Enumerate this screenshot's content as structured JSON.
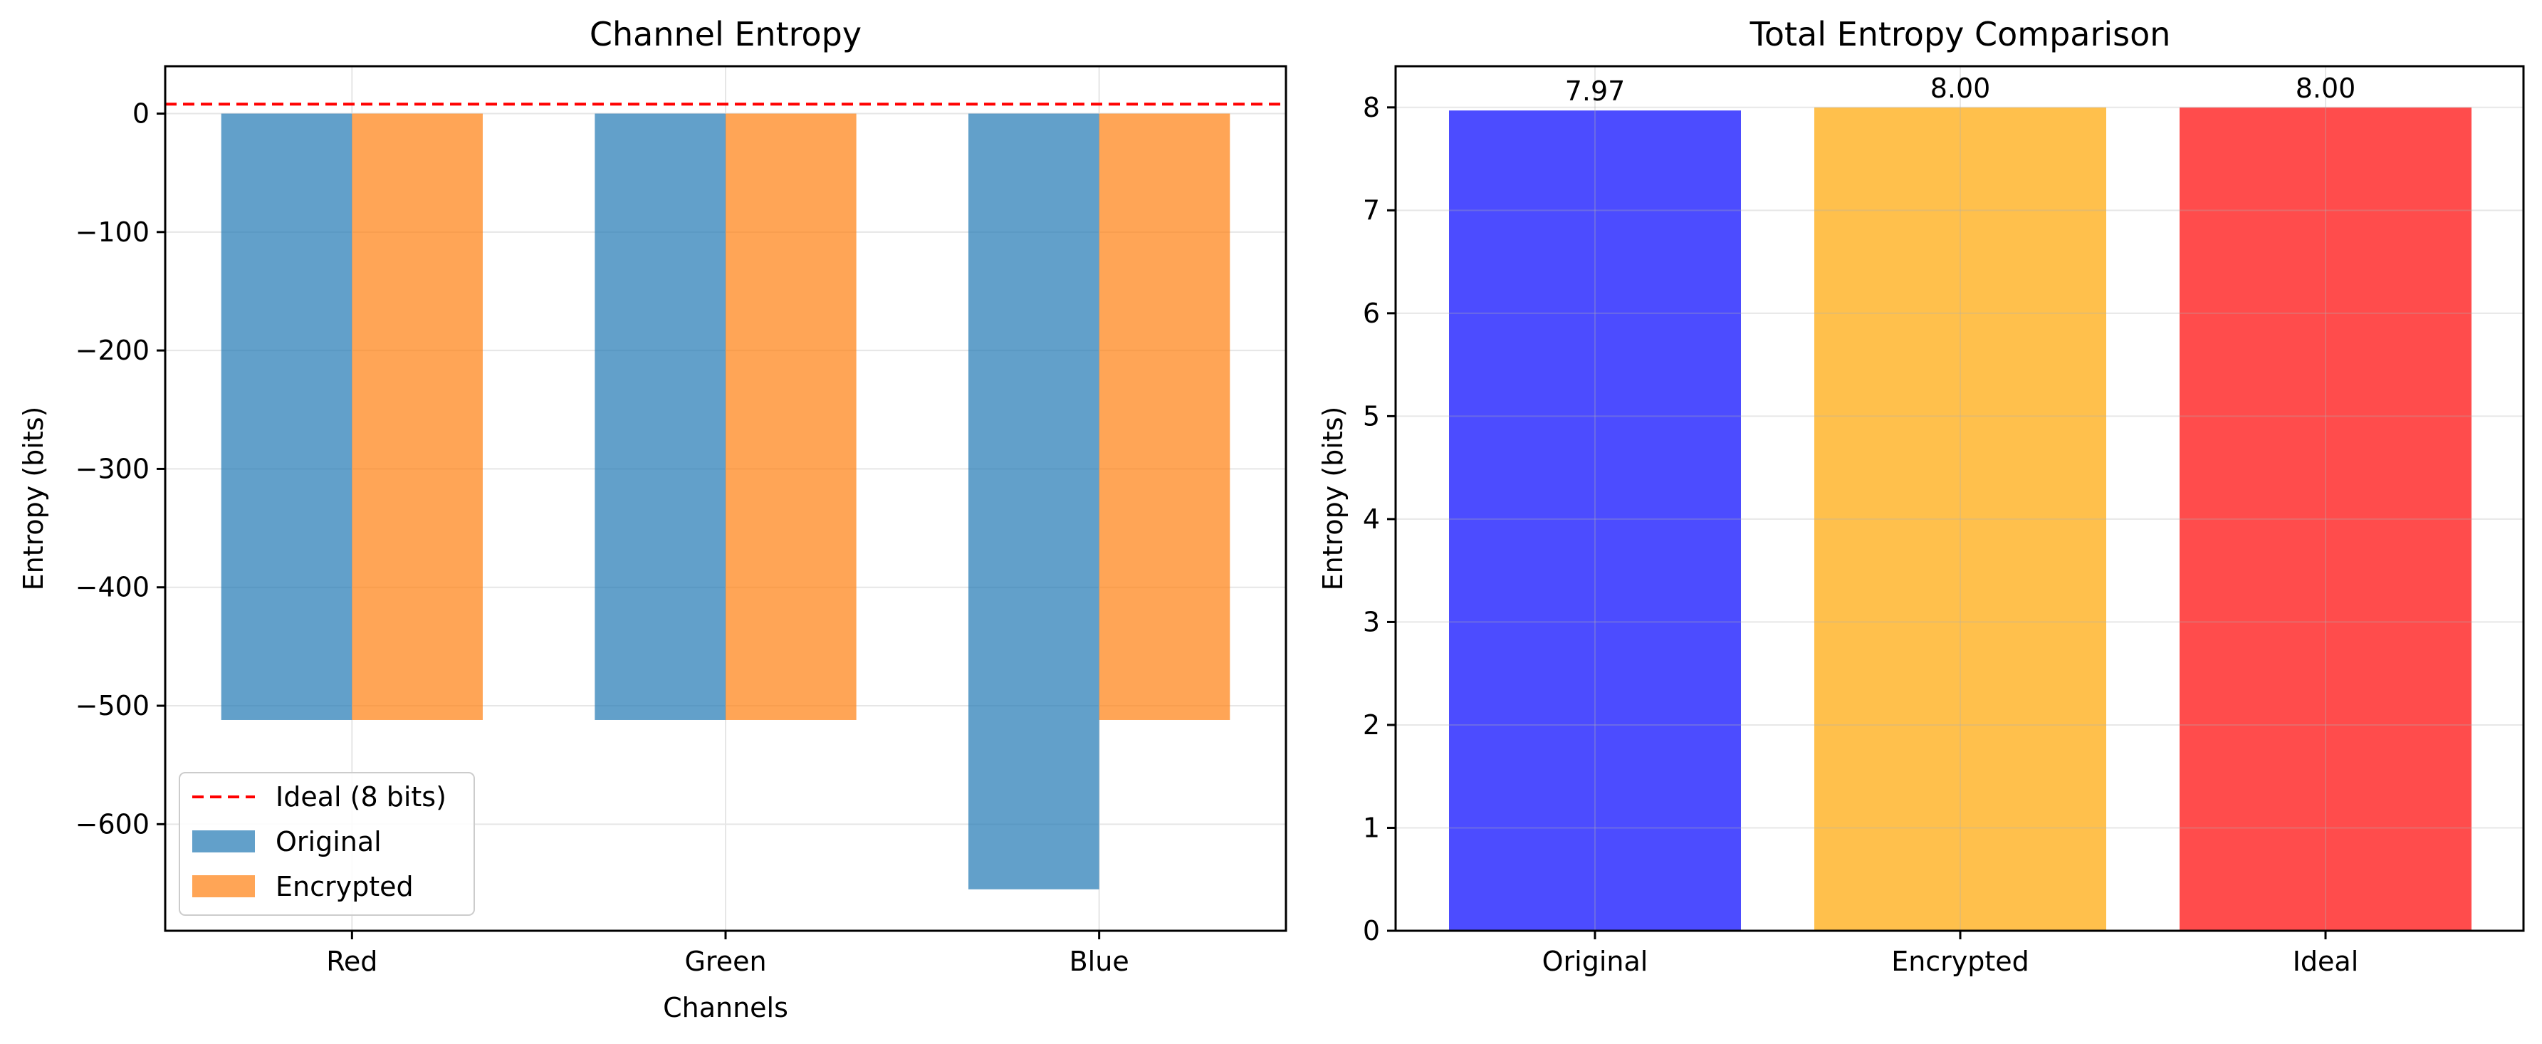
{
  "chart_data": [
    {
      "type": "bar",
      "title": "Channel Entropy",
      "xlabel": "Channels",
      "ylabel": "Entropy (bits)",
      "categories": [
        "Red",
        "Green",
        "Blue"
      ],
      "series": [
        {
          "name": "Original",
          "values": [
            -512,
            -512,
            -655
          ],
          "color": "#1f77b4"
        },
        {
          "name": "Encrypted",
          "values": [
            -512,
            -512,
            -512
          ],
          "color": "#ff7f0e"
        }
      ],
      "reference_line": {
        "name": "Ideal (8 bits)",
        "value": 8,
        "color": "#ff0000",
        "style": "dashed"
      },
      "ylim": [
        -690,
        40
      ],
      "yticks": [
        0,
        -100,
        -200,
        -300,
        -400,
        -500,
        -600
      ],
      "grid": true,
      "legend": "lower-left"
    },
    {
      "type": "bar",
      "title": "Total Entropy Comparison",
      "xlabel": "",
      "ylabel": "Entropy (bits)",
      "categories": [
        "Original",
        "Encrypted",
        "Ideal"
      ],
      "values": [
        7.97,
        8.0,
        8.0
      ],
      "data_labels": [
        "7.97",
        "8.00",
        "8.00"
      ],
      "colors": [
        "#0000ff",
        "#ffa500",
        "#ff0000"
      ],
      "ylim": [
        0,
        8.4
      ],
      "yticks": [
        0,
        1,
        2,
        3,
        4,
        5,
        6,
        7,
        8
      ],
      "grid": true
    }
  ]
}
